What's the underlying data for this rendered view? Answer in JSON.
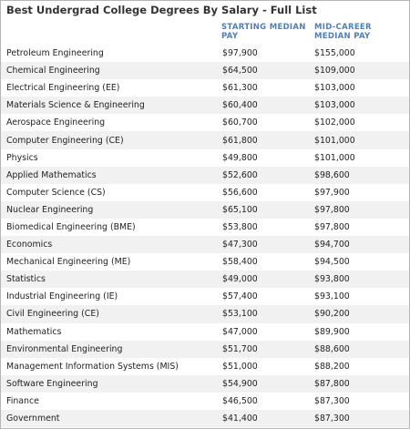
{
  "title": "Best Undergrad College Degrees By Salary - Full List",
  "headers": {
    "starting": "STARTING MEDIAN PAY",
    "mid": "MID-CAREER MEDIAN PAY"
  },
  "rows": [
    {
      "major": "Petroleum Engineering",
      "starting": "$97,900",
      "mid": "$155,000"
    },
    {
      "major": "Chemical Engineering",
      "starting": "$64,500",
      "mid": "$109,000"
    },
    {
      "major": "Electrical Engineering (EE)",
      "starting": "$61,300",
      "mid": "$103,000"
    },
    {
      "major": "Materials Science & Engineering",
      "starting": "$60,400",
      "mid": "$103,000"
    },
    {
      "major": "Aerospace Engineering",
      "starting": "$60,700",
      "mid": "$102,000"
    },
    {
      "major": "Computer Engineering (CE)",
      "starting": "$61,800",
      "mid": "$101,000"
    },
    {
      "major": "Physics",
      "starting": "$49,800",
      "mid": "$101,000"
    },
    {
      "major": "Applied Mathematics",
      "starting": "$52,600",
      "mid": "$98,600"
    },
    {
      "major": "Computer Science (CS)",
      "starting": "$56,600",
      "mid": "$97,900"
    },
    {
      "major": "Nuclear Engineering",
      "starting": "$65,100",
      "mid": "$97,800"
    },
    {
      "major": "Biomedical Engineering (BME)",
      "starting": "$53,800",
      "mid": "$97,800"
    },
    {
      "major": "Economics",
      "starting": "$47,300",
      "mid": "$94,700"
    },
    {
      "major": "Mechanical Engineering (ME)",
      "starting": "$58,400",
      "mid": "$94,500"
    },
    {
      "major": "Statistics",
      "starting": "$49,000",
      "mid": "$93,800"
    },
    {
      "major": "Industrial Engineering (IE)",
      "starting": "$57,400",
      "mid": "$93,100"
    },
    {
      "major": "Civil Engineering (CE)",
      "starting": "$53,100",
      "mid": "$90,200"
    },
    {
      "major": "Mathematics",
      "starting": "$47,000",
      "mid": "$89,900"
    },
    {
      "major": "Environmental Engineering",
      "starting": "$51,700",
      "mid": "$88,600"
    },
    {
      "major": "Management Information Systems (MIS)",
      "starting": "$51,000",
      "mid": "$88,200"
    },
    {
      "major": "Software Engineering",
      "starting": "$54,900",
      "mid": "$87,800"
    },
    {
      "major": "Finance",
      "starting": "$46,500",
      "mid": "$87,300"
    },
    {
      "major": "Government",
      "starting": "$41,400",
      "mid": "$87,300"
    }
  ]
}
